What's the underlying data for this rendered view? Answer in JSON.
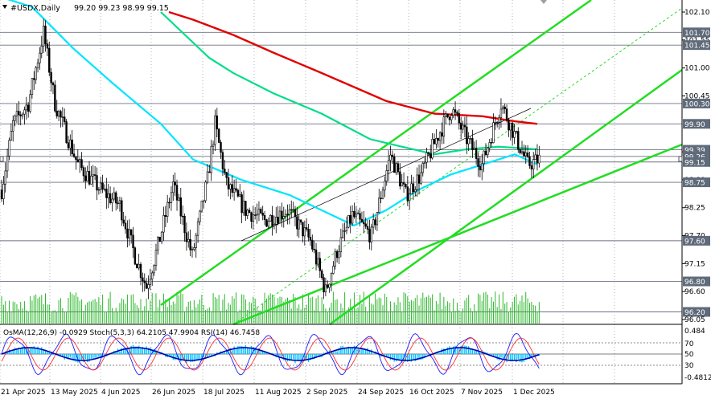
{
  "header": {
    "symbol": "#USDX,Daily",
    "ohlc": "99.20 99.23 98.99 99.15"
  },
  "price_axis": {
    "ticks": [
      "102.10",
      "101.55",
      "101.00",
      "100.45",
      "99.35",
      "98.80",
      "98.25",
      "97.70",
      "97.15",
      "96.60",
      "96.05"
    ]
  },
  "price_tags": [
    {
      "label": "101.70",
      "color": "#5f6b7a"
    },
    {
      "label": "101.45",
      "color": "#5f6b7a"
    },
    {
      "label": "100.30",
      "color": "#5f6b7a"
    },
    {
      "label": "99.90",
      "color": "#5f6b7a"
    },
    {
      "label": "99.39",
      "color": "#5f6b7a"
    },
    {
      "label": "99.26",
      "color": "#5f6b7a"
    },
    {
      "label": "99.15",
      "color": "#5f6b7a"
    },
    {
      "label": "98.75",
      "color": "#5f6b7a"
    },
    {
      "label": "97.60",
      "color": "#5f6b7a"
    },
    {
      "label": "96.80",
      "color": "#5f6b7a"
    },
    {
      "label": "96.20",
      "color": "#5f6b7a"
    }
  ],
  "oscillator": {
    "label": "OsMA(12,26,9) -0.0929  Stoch(5,3,3) 64.2105 47.9904  RSI(14) 46.7458",
    "ticks": [
      "0.484",
      "70",
      "50",
      "30",
      "-0.4812"
    ]
  },
  "time_axis": {
    "labels": [
      "21 Apr 2025",
      "13 May 2025",
      "4 Jun 2025",
      "26 Jun 2025",
      "18 Jul 2025",
      "11 Aug 2025",
      "2 Sep 2025",
      "24 Sep 2025",
      "16 Oct 2025",
      "7 Nov 2025",
      "1 Dec 2025"
    ]
  },
  "colors": {
    "ma_fast": "#00e5ff",
    "ma_mid": "#00dd88",
    "ma_slow": "#e00000",
    "channel": "#22dd22",
    "candle": "#000000",
    "volume": "#2db82d",
    "osma": "#00bfff",
    "stoch_main": "#1a1aff",
    "stoch_signal": "#ff3030",
    "rsi": "#0000aa"
  }
}
